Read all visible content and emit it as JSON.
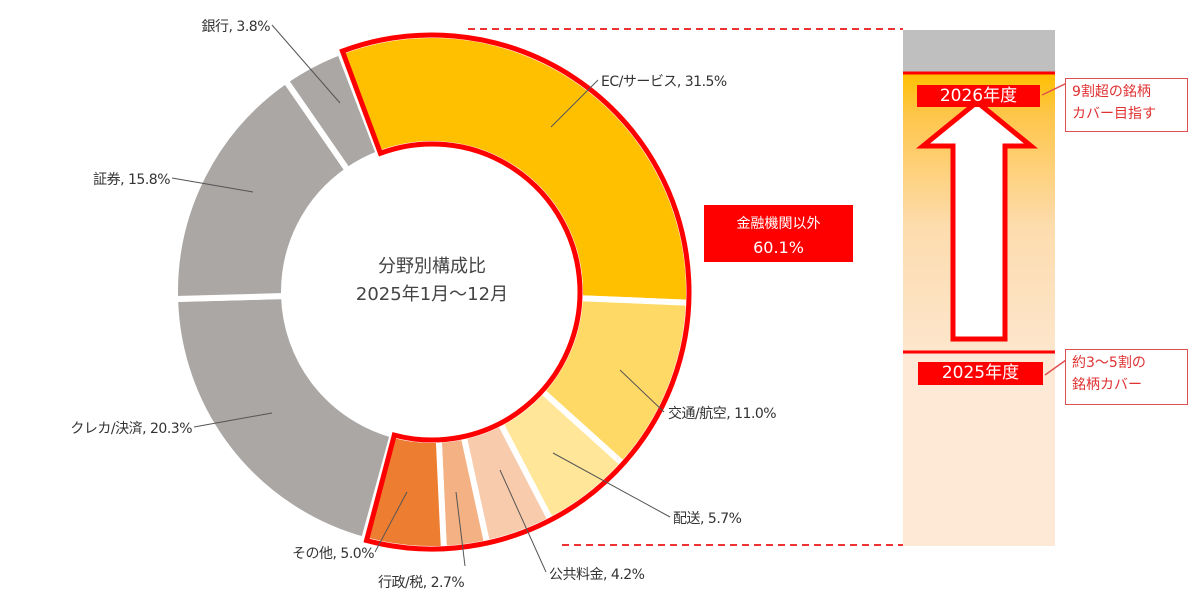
{
  "chart_data": {
    "type": "pie",
    "variant": "donut",
    "center_title": "分野別構成比",
    "center_subtitle": "2025年1月〜12月",
    "unit": "%",
    "slices": [
      {
        "name": "EC/サービス",
        "value": 31.5,
        "color": "#FFC000",
        "group": "non-financial"
      },
      {
        "name": "交通/航空",
        "value": 11.0,
        "color": "#FFD966",
        "group": "non-financial"
      },
      {
        "name": "配送",
        "value": 5.7,
        "color": "#FFE699",
        "group": "non-financial"
      },
      {
        "name": "公共料金",
        "value": 4.2,
        "color": "#F8CBAD",
        "group": "non-financial"
      },
      {
        "name": "行政/税",
        "value": 2.7,
        "color": "#F4B183",
        "group": "non-financial"
      },
      {
        "name": "その他",
        "value": 5.0,
        "color": "#ED7D31",
        "group": "non-financial"
      },
      {
        "name": "クレカ/決済",
        "value": 20.3,
        "color": "#AAA7A5",
        "group": "financial"
      },
      {
        "name": "証券",
        "value": 15.8,
        "color": "#AAA7A5",
        "group": "financial"
      },
      {
        "name": "銀行",
        "value": 3.8,
        "color": "#AAA7A5",
        "group": "financial"
      }
    ],
    "highlight": {
      "label": "金融機関以外",
      "value": "60.1%",
      "color": "#FF0000"
    }
  },
  "coverage_bar": {
    "top_year": "2026年度",
    "top_note": [
      "9割超の銘柄",
      "カバー目指す"
    ],
    "bottom_year": "2025年度",
    "bottom_note": [
      "約3〜5割の",
      "銘柄カバー"
    ],
    "target_level_pct": 92,
    "current_level_pct": 38,
    "colors": {
      "accent": "#FF0000",
      "fill_top": "#FFC000",
      "fill_bottom": "#FDE9D9",
      "remainder": "#BFBFBF"
    }
  }
}
